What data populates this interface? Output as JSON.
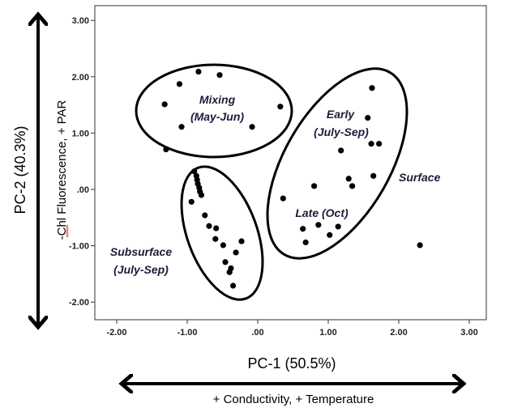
{
  "chart_data": {
    "type": "scatter",
    "title": "",
    "xlabel": "PC-1 (50.5%)",
    "ylabel": "PC-2 (40.3%)",
    "x_arrow_label": "+ Conductivity, + Temperature",
    "y_arrow_label": "-Chl Fluorescence, + PAR",
    "xlim": [
      -2.5,
      3.2
    ],
    "ylim": [
      -2.3,
      3.25
    ],
    "x_ticks": [
      -2,
      -1,
      0,
      1,
      2,
      3
    ],
    "x_tick_labels": [
      "-2.00",
      "-1.00",
      ".00",
      "1.00",
      "2.00",
      "3.00"
    ],
    "y_ticks": [
      3,
      2,
      1,
      0,
      -1,
      -2
    ],
    "y_tick_labels": [
      "3.00",
      "2.00",
      "1.00",
      ".00",
      "-1.00",
      "-2.00"
    ],
    "grid": false,
    "group_labels": {
      "mixing": [
        "Mixing",
        "(May-Jun)"
      ],
      "early": [
        "Early",
        "(July-Sep)"
      ],
      "late": "Late (Oct)",
      "surface": "Surface",
      "subsurface": [
        "Subsurface",
        "(July-Sep)"
      ]
    },
    "series": [
      {
        "name": "Mixing (May-Jun)",
        "points": [
          [
            -0.84,
            2.09
          ],
          [
            -0.54,
            2.03
          ],
          [
            -1.11,
            1.87
          ],
          [
            -1.32,
            1.51
          ],
          [
            0.32,
            1.47
          ],
          [
            -1.08,
            1.11
          ],
          [
            -0.08,
            1.11
          ],
          [
            -1.3,
            0.71
          ]
        ]
      },
      {
        "name": "Subsurface (July-Sep)",
        "points": [
          [
            -0.9,
            0.32
          ],
          [
            -0.87,
            0.24
          ],
          [
            -0.86,
            0.17
          ],
          [
            -0.85,
            0.1
          ],
          [
            -0.83,
            0.03
          ],
          [
            -0.82,
            -0.04
          ],
          [
            -0.8,
            -0.1
          ],
          [
            -0.94,
            -0.22
          ],
          [
            -0.75,
            -0.46
          ],
          [
            -0.69,
            -0.65
          ],
          [
            -0.59,
            -0.69
          ],
          [
            -0.6,
            -0.88
          ],
          [
            -0.49,
            -0.99
          ],
          [
            -0.23,
            -0.92
          ],
          [
            -0.31,
            -1.12
          ],
          [
            -0.46,
            -1.29
          ],
          [
            -0.38,
            -1.4
          ],
          [
            -0.4,
            -1.47
          ],
          [
            -0.35,
            -1.71
          ]
        ]
      },
      {
        "name": "Surface",
        "points": [
          [
            1.62,
            1.8
          ],
          [
            1.56,
            1.27
          ],
          [
            1.61,
            0.81
          ],
          [
            1.72,
            0.81
          ],
          [
            1.18,
            0.69
          ],
          [
            1.29,
            0.19
          ],
          [
            1.64,
            0.24
          ],
          [
            1.34,
            0.06
          ],
          [
            0.8,
            0.06
          ],
          [
            0.36,
            -0.16
          ],
          [
            0.64,
            -0.7
          ],
          [
            0.86,
            -0.63
          ],
          [
            1.14,
            -0.66
          ],
          [
            1.02,
            -0.81
          ],
          [
            0.68,
            -0.94
          ],
          [
            2.3,
            -0.99
          ]
        ]
      }
    ]
  }
}
